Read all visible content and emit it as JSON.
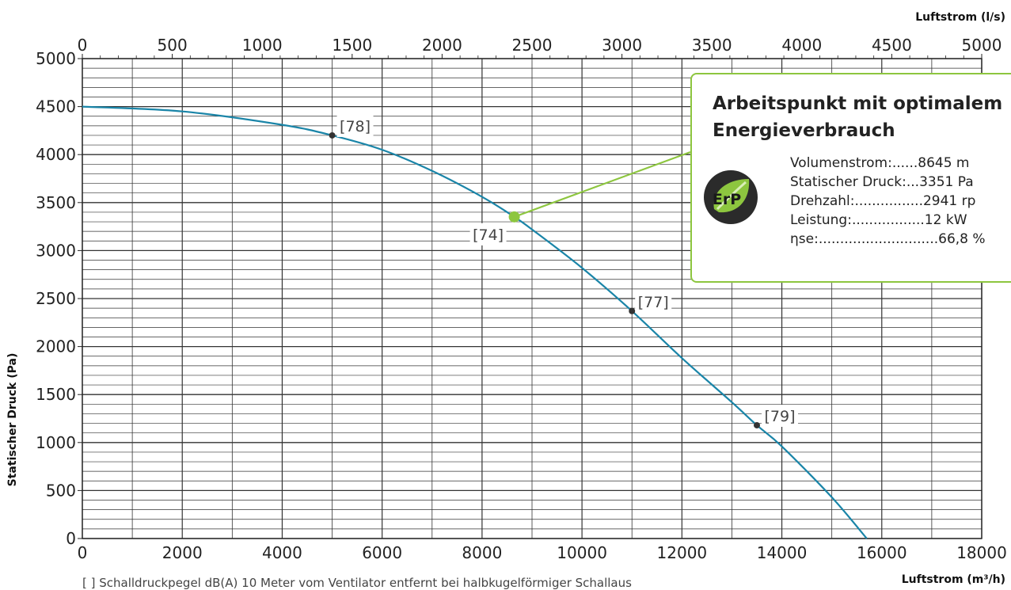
{
  "chart_data": {
    "type": "line",
    "top_axis_title": "Luftstrom (l/s)",
    "bottom_axis_title": "Luftstrom (m³/h)",
    "y_axis_title": "Statischer Druck (Pa)",
    "x_ticks_bottom": [
      "0",
      "2000",
      "4000",
      "6000",
      "8000",
      "10000",
      "12000",
      "14000",
      "16000",
      "18000"
    ],
    "x_ticks_top": [
      "0",
      "500",
      "1000",
      "1500",
      "2000",
      "2500",
      "3000",
      "3500",
      "4000",
      "4500",
      "5000"
    ],
    "y_ticks": [
      "0",
      "500",
      "1000",
      "1500",
      "2000",
      "2500",
      "3000",
      "3500",
      "4000",
      "4500",
      "5000"
    ],
    "xlim": [
      0,
      18000
    ],
    "ylim": [
      0,
      5000
    ],
    "grid": true,
    "series": [
      {
        "color": "#1a85a8",
        "x": [
          0,
          2000,
          4000,
          5000,
          6000,
          7000,
          8000,
          8645,
          9000,
          10000,
          11000,
          12000,
          13000,
          13500,
          14000,
          15000,
          15700
        ],
        "y": [
          4500,
          4450,
          4310,
          4200,
          4050,
          3830,
          3560,
          3351,
          3220,
          2820,
          2370,
          1880,
          1420,
          1180,
          960,
          430,
          0
        ]
      }
    ],
    "sound_points": [
      {
        "x": 5000,
        "y": 4200,
        "label": "[78]"
      },
      {
        "x": 8645,
        "y": 3351,
        "label": "[74]"
      },
      {
        "x": 11000,
        "y": 2370,
        "label": "[77]"
      },
      {
        "x": 13500,
        "y": 1180,
        "label": "[79]"
      }
    ]
  },
  "callout": {
    "title": "Arbeitspunkt mit optimalem Energieverbrauch",
    "badge": "ErP",
    "rows": [
      {
        "text": "Volumenstrom:......8645 m"
      },
      {
        "text": "Statischer Druck:...3351 Pa"
      },
      {
        "text": "Drehzahl:................2941 rp"
      },
      {
        "text": "Leistung:.................12 kW"
      },
      {
        "text": "ηse:............................66,8 %"
      }
    ]
  },
  "footnote": "[  ]  Schalldruckpegel dB(A) 10 Meter vom Ventilator entfernt bei halbkugelförmiger Schallaus",
  "colors": {
    "curve": "#1a85a8",
    "operating_point": "#8dc63f",
    "grid": "#333333"
  }
}
